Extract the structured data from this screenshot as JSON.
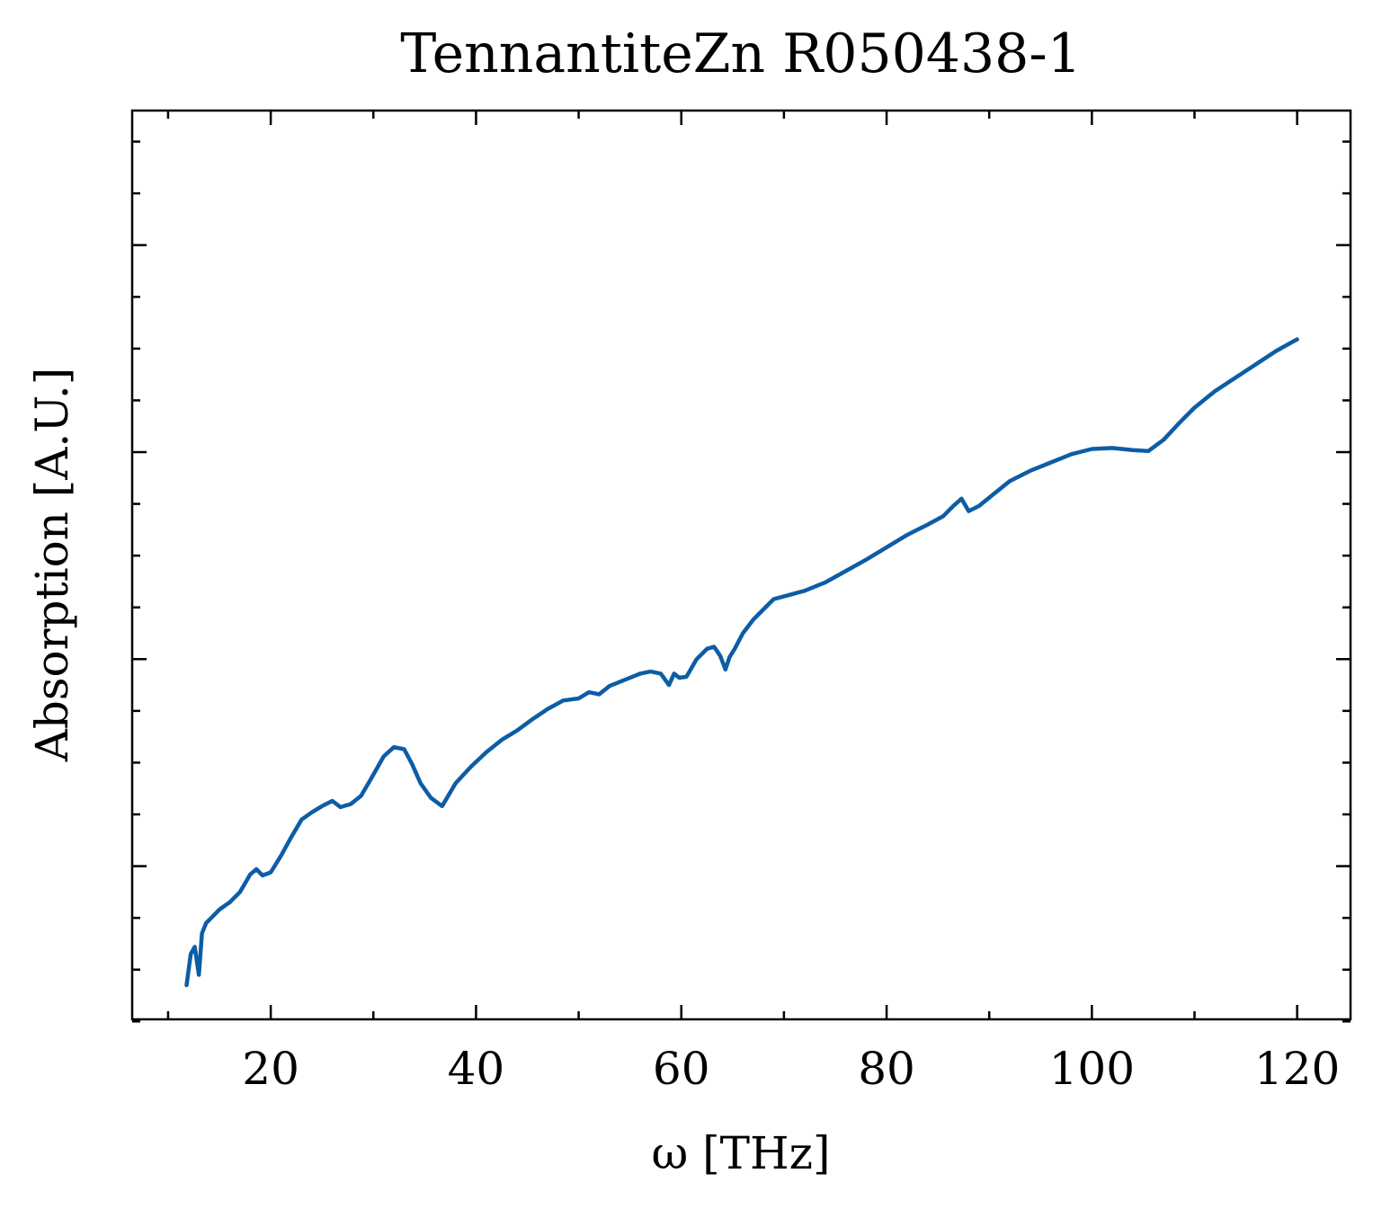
{
  "chart_data": {
    "type": "line",
    "title": "TennantiteZn R050438-1",
    "xlabel": "ω [THz]",
    "ylabel": "Absorption [A.U.]",
    "xlim": [
      6.5,
      125.2
    ],
    "ylim": [
      0.052,
      0.93
    ],
    "x_ticks": [
      20,
      40,
      60,
      80,
      100,
      120
    ],
    "x_tick_labels": [
      "20",
      "40",
      "60",
      "80",
      "100",
      "120"
    ],
    "x_minor_ticks": [
      10,
      30,
      50,
      70,
      90,
      110
    ],
    "y_ticks": [
      0.2,
      0.4,
      0.6,
      0.8
    ],
    "y_tick_labels": [
      "",
      "",
      "",
      ""
    ],
    "y_minor_ticks": [
      0.05,
      0.1,
      0.15,
      0.25,
      0.3,
      0.35,
      0.45,
      0.5,
      0.55,
      0.65,
      0.7,
      0.75,
      0.85,
      0.9
    ],
    "grid": false,
    "line_color": "#0c5da5",
    "series": [
      {
        "name": "",
        "x": [
          11.8,
          12.2,
          12.6,
          13.0,
          13.3,
          13.7,
          14.2,
          15.0,
          16.0,
          17.0,
          18.0,
          18.6,
          19.2,
          20.0,
          21.0,
          22.0,
          23.0,
          24.0,
          25.0,
          26.0,
          26.8,
          27.8,
          28.8,
          29.8,
          31.0,
          32.0,
          33.0,
          33.8,
          34.6,
          35.6,
          36.7,
          38.0,
          39.5,
          41.0,
          42.5,
          44.0,
          45.5,
          47.0,
          48.5,
          50.0,
          51.0,
          52.0,
          53.0,
          54.5,
          56.0,
          57.0,
          58.0,
          58.8,
          59.3,
          59.8,
          60.5,
          61.5,
          62.5,
          63.2,
          63.8,
          64.3,
          64.7,
          65.2,
          66.0,
          67.0,
          68.0,
          69.0,
          70.5,
          72.0,
          74.0,
          76.0,
          78.0,
          80.0,
          82.0,
          84.0,
          85.5,
          86.5,
          87.3,
          88.0,
          89.0,
          90.5,
          92.0,
          94.0,
          96.0,
          98.0,
          100.0,
          102.0,
          104.0,
          105.5,
          107.0,
          108.5,
          110.0,
          112.0,
          114.0,
          116.0,
          118.0,
          120.0
        ],
        "values": [
          0.085,
          0.115,
          0.122,
          0.095,
          0.135,
          0.145,
          0.15,
          0.158,
          0.165,
          0.175,
          0.192,
          0.197,
          0.191,
          0.194,
          0.21,
          0.228,
          0.245,
          0.252,
          0.258,
          0.263,
          0.257,
          0.26,
          0.268,
          0.285,
          0.306,
          0.315,
          0.313,
          0.298,
          0.28,
          0.266,
          0.258,
          0.28,
          0.296,
          0.31,
          0.322,
          0.331,
          0.342,
          0.352,
          0.36,
          0.362,
          0.368,
          0.366,
          0.374,
          0.38,
          0.386,
          0.388,
          0.386,
          0.375,
          0.386,
          0.382,
          0.383,
          0.4,
          0.41,
          0.412,
          0.403,
          0.39,
          0.402,
          0.41,
          0.425,
          0.438,
          0.448,
          0.458,
          0.462,
          0.466,
          0.474,
          0.485,
          0.496,
          0.508,
          0.52,
          0.53,
          0.538,
          0.548,
          0.555,
          0.543,
          0.548,
          0.56,
          0.572,
          0.582,
          0.59,
          0.598,
          0.603,
          0.604,
          0.602,
          0.601,
          0.612,
          0.628,
          0.643,
          0.659,
          0.672,
          0.685,
          0.698,
          0.709
        ]
      }
    ]
  }
}
